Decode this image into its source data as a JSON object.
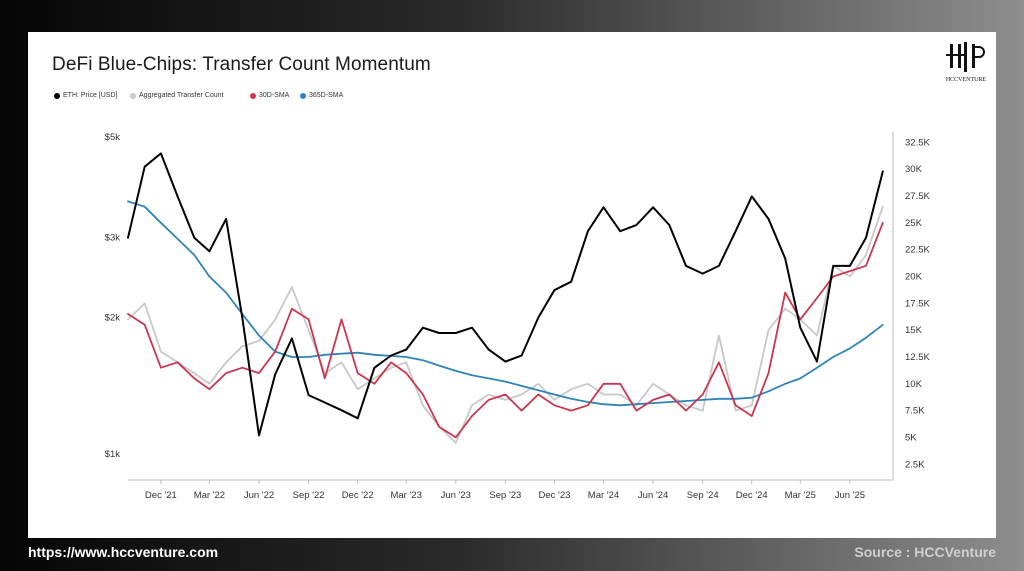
{
  "title": "DeFi Blue-Chips: Transfer Count Momentum",
  "logo": {
    "text": "HCCVENTURE"
  },
  "footer": {
    "url": "https://www.hccventure.com",
    "source": "Source : HCCVenture"
  },
  "colors": {
    "price": "#000000",
    "transfers": "#c8c8c8",
    "sma30": "#c8374f",
    "sma365": "#2f83b8"
  },
  "chart_data": {
    "type": "line",
    "title": "DeFi Blue-Chips: Transfer Count Momentum",
    "x": [
      "2021-10-01",
      "2021-11-01",
      "2021-12-01",
      "2022-01-01",
      "2022-02-01",
      "2022-03-01",
      "2022-04-01",
      "2022-05-01",
      "2022-06-01",
      "2022-07-01",
      "2022-08-01",
      "2022-09-01",
      "2022-10-01",
      "2022-11-01",
      "2022-12-01",
      "2023-01-01",
      "2023-02-01",
      "2023-03-01",
      "2023-04-01",
      "2023-05-01",
      "2023-06-01",
      "2023-07-01",
      "2023-08-01",
      "2023-09-01",
      "2023-10-01",
      "2023-11-01",
      "2023-12-01",
      "2024-01-01",
      "2024-02-01",
      "2024-03-01",
      "2024-04-01",
      "2024-05-01",
      "2024-06-01",
      "2024-07-01",
      "2024-08-01",
      "2024-09-01",
      "2024-10-01",
      "2024-11-01",
      "2024-12-01",
      "2025-01-01",
      "2025-02-01",
      "2025-03-01",
      "2025-04-01",
      "2025-05-01",
      "2025-06-01",
      "2025-07-01",
      "2025-08-01"
    ],
    "x_tick_labels": [
      "Dec '21",
      "Mar '22",
      "Jun '22",
      "Sep '22",
      "Dec '22",
      "Mar '23",
      "Jun '23",
      "Sep '23",
      "Dec '23",
      "Mar '24",
      "Jun '24",
      "Sep '24",
      "Dec '24",
      "Mar '25",
      "Jun '25"
    ],
    "x_tick_dates": [
      "2021-12-01",
      "2022-03-01",
      "2022-06-01",
      "2022-09-01",
      "2022-12-01",
      "2023-03-01",
      "2023-06-01",
      "2023-09-01",
      "2023-12-01",
      "2024-03-01",
      "2024-06-01",
      "2024-09-01",
      "2024-12-01",
      "2025-03-01",
      "2025-06-01"
    ],
    "x_range": [
      "2021-10-01",
      "2025-08-20"
    ],
    "y_left": {
      "scale": "log",
      "range": [
        900,
        5000
      ],
      "ticks": [
        1000,
        2000,
        3000,
        5000
      ],
      "tick_labels": [
        "$1k",
        "$2k",
        "$3k",
        "$5k"
      ]
    },
    "y_right": {
      "scale": "linear",
      "range": [
        1500,
        33000
      ],
      "ticks": [
        2500,
        5000,
        7500,
        10000,
        12500,
        15000,
        17500,
        20000,
        22500,
        25000,
        27500,
        30000,
        32500
      ],
      "tick_labels": [
        "2.5K",
        "5K",
        "7.5K",
        "10K",
        "12.5K",
        "15K",
        "17.5K",
        "20K",
        "22.5K",
        "25K",
        "27.5K",
        "30K",
        "32.5K"
      ]
    },
    "grid": false,
    "legend_position": "top-left",
    "series": [
      {
        "name": "ETH: Price [USD]",
        "axis": "left",
        "color": "#000000",
        "values": [
          3000,
          4300,
          4600,
          3700,
          3000,
          2800,
          3300,
          2000,
          1100,
          1500,
          1800,
          1350,
          1300,
          1250,
          1200,
          1550,
          1650,
          1700,
          1900,
          1850,
          1850,
          1900,
          1700,
          1600,
          1650,
          2000,
          2300,
          2400,
          3100,
          3500,
          3100,
          3200,
          3500,
          3200,
          2600,
          2500,
          2600,
          3100,
          3700,
          3300,
          2700,
          1900,
          1600,
          2600,
          2600,
          3000,
          4200
        ]
      },
      {
        "name": "Aggregated Transfer Count",
        "axis": "right",
        "color": "#c8c8c8",
        "values": [
          16000,
          17500,
          13000,
          12000,
          11000,
          10000,
          12000,
          13500,
          14000,
          16000,
          19000,
          15000,
          11000,
          12000,
          9500,
          10500,
          11500,
          12000,
          8000,
          6000,
          4500,
          8000,
          9000,
          8500,
          9000,
          10000,
          8500,
          9500,
          10000,
          9000,
          9000,
          8000,
          10000,
          9000,
          8000,
          7500,
          14500,
          7500,
          8000,
          15000,
          17000,
          16000,
          14500,
          21000,
          20000,
          22000,
          26500
        ]
      },
      {
        "name": "30D-SMA",
        "axis": "right",
        "color": "#c8374f",
        "values": [
          16500,
          15500,
          11500,
          12000,
          10500,
          9500,
          11000,
          11500,
          11000,
          13000,
          17000,
          16000,
          10500,
          16000,
          11000,
          10000,
          12000,
          11000,
          9000,
          6000,
          5000,
          7000,
          8500,
          9000,
          7500,
          9000,
          8000,
          7500,
          8000,
          10000,
          10000,
          7500,
          8500,
          9000,
          7500,
          9000,
          12000,
          8000,
          7000,
          11000,
          18500,
          16000,
          18000,
          20000,
          20500,
          21000,
          25000
        ]
      },
      {
        "name": "365D-SMA",
        "axis": "right",
        "color": "#2f83b8",
        "values": [
          27000,
          26500,
          25000,
          23500,
          22000,
          20000,
          18500,
          16500,
          14500,
          13000,
          12500,
          12500,
          12700,
          12800,
          12900,
          12700,
          12600,
          12500,
          12200,
          11700,
          11200,
          10800,
          10500,
          10200,
          9800,
          9400,
          9000,
          8600,
          8300,
          8100,
          8000,
          8100,
          8200,
          8300,
          8400,
          8500,
          8600,
          8600,
          8700,
          9300,
          10000,
          10500,
          11500,
          12500,
          13300,
          14300,
          15500
        ]
      }
    ]
  }
}
